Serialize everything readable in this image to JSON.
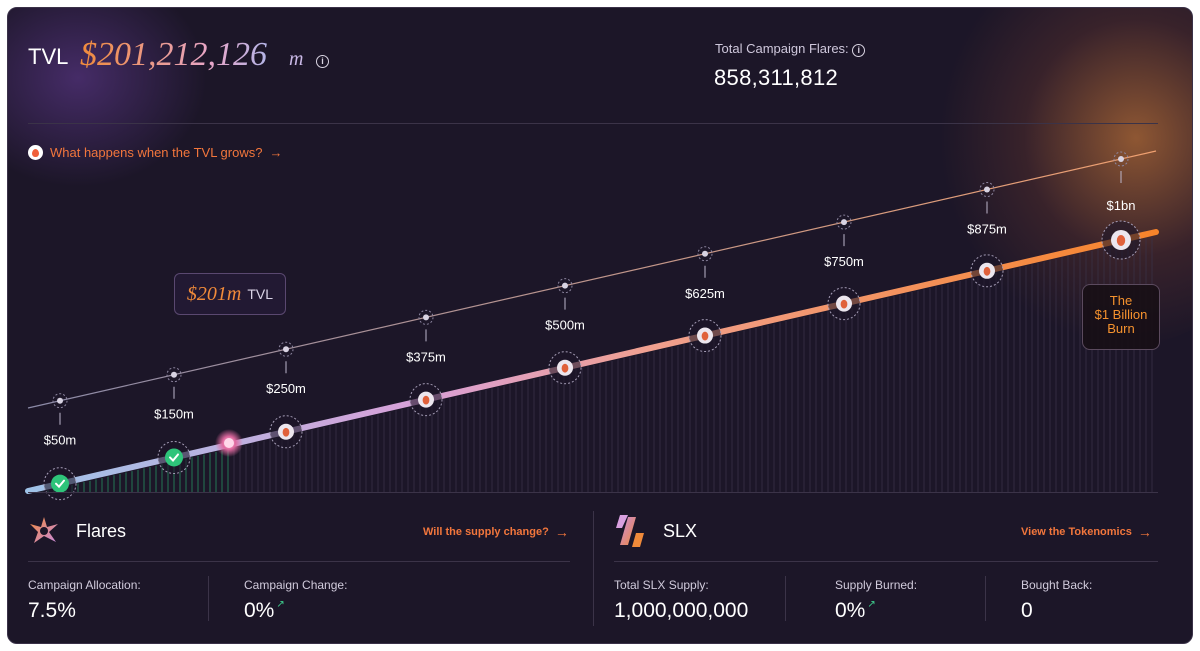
{
  "header": {
    "tvl_label": "TVL",
    "tvl_value": "$201,212,126",
    "tvl_unit": "m",
    "total_flares_label": "Total Campaign Flares:",
    "total_flares_value": "858,311,812"
  },
  "banner": {
    "link_text": "What happens when the TVL grows?",
    "arrow": "→"
  },
  "milestones": [
    {
      "label": "$50m",
      "reached": true
    },
    {
      "label": "$150m",
      "reached": true
    },
    {
      "label": "$250m",
      "reached": false
    },
    {
      "label": "$375m",
      "reached": false
    },
    {
      "label": "$500m",
      "reached": false
    },
    {
      "label": "$625m",
      "reached": false
    },
    {
      "label": "$750m",
      "reached": false
    },
    {
      "label": "$875m",
      "reached": false
    },
    {
      "label": "$1bn",
      "reached": false
    }
  ],
  "current_tvl_marker": {
    "value": "$201m",
    "unit": "TVL"
  },
  "burn_card": {
    "line1": "The",
    "line2": "$1 Billion",
    "line3": "Burn"
  },
  "flares": {
    "title": "Flares",
    "link_text": "Will the supply change?",
    "arrow": "→",
    "stats": [
      {
        "label": "Campaign Allocation:",
        "value": "7.5%"
      },
      {
        "label": "Campaign Change:",
        "value": "0%",
        "trend": "↗"
      }
    ]
  },
  "slx": {
    "title": "SLX",
    "link_text": "View the Tokenomics",
    "arrow": "→",
    "stats": [
      {
        "label": "Total SLX Supply:",
        "value": "1,000,000,000"
      },
      {
        "label": "Supply Burned:",
        "value": "0%",
        "trend": "↗"
      },
      {
        "label": "Bought Back:",
        "value": "0"
      }
    ]
  },
  "colors": {
    "accent": "#f2763c",
    "success": "#2ec47a",
    "background": "#1c1628"
  }
}
